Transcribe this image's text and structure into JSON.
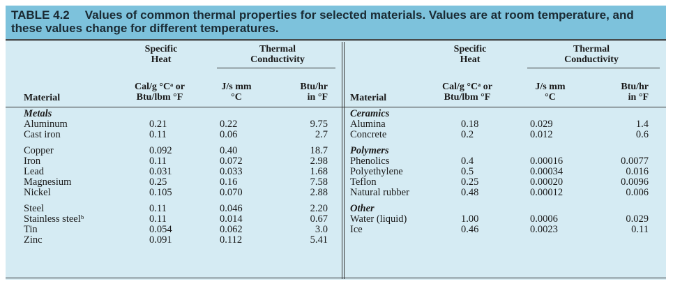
{
  "caption": {
    "number": "TABLE 4.2",
    "text": "Values of common thermal properties for selected materials. Values are at room temperature, and these values change for different temperatures."
  },
  "headers": {
    "specific_heat": [
      "Specific",
      "Heat"
    ],
    "thermal_conductivity": [
      "Thermal",
      "Conductivity"
    ],
    "material": "Material",
    "cal_unit": [
      "Cal/g °Cᵃ or",
      "Btu/lbm °F"
    ],
    "js_unit": [
      "J/s mm",
      "°C"
    ],
    "btu_unit": [
      "Btu/hr",
      "in °F"
    ]
  },
  "left_groups": [
    {
      "category": "Metals",
      "rows": [
        {
          "material": "Aluminum",
          "specific_heat": "0.21",
          "js": "0.22",
          "btu": "9.75"
        },
        {
          "material": "Cast iron",
          "specific_heat": "0.11",
          "js": "0.06",
          "btu": "2.7"
        }
      ]
    },
    {
      "category": "",
      "rows": [
        {
          "material": "Copper",
          "specific_heat": "0.092",
          "js": "0.40",
          "btu": "18.7"
        },
        {
          "material": "Iron",
          "specific_heat": "0.11",
          "js": "0.072",
          "btu": "2.98"
        },
        {
          "material": "Lead",
          "specific_heat": "0.031",
          "js": "0.033",
          "btu": "1.68"
        },
        {
          "material": "Magnesium",
          "specific_heat": "0.25",
          "js": "0.16",
          "btu": "7.58"
        },
        {
          "material": "Nickel",
          "specific_heat": "0.105",
          "js": "0.070",
          "btu": "2.88"
        }
      ]
    },
    {
      "category": "",
      "rows": [
        {
          "material": "Steel",
          "specific_heat": "0.11",
          "js": "0.046",
          "btu": "2.20"
        },
        {
          "material": "Stainless steelᵇ",
          "specific_heat": "0.11",
          "js": "0.014",
          "btu": "0.67"
        },
        {
          "material": "Tin",
          "specific_heat": "0.054",
          "js": "0.062",
          "btu": "3.0"
        },
        {
          "material": "Zinc",
          "specific_heat": "0.091",
          "js": "0.112",
          "btu": "5.41"
        }
      ]
    }
  ],
  "right_groups": [
    {
      "category": "Ceramics",
      "rows": [
        {
          "material": "Alumina",
          "specific_heat": "0.18",
          "js": "0.029",
          "btu": "1.4"
        },
        {
          "material": "Concrete",
          "specific_heat": "0.2",
          "js": "0.012",
          "btu": "0.6"
        }
      ]
    },
    {
      "category": "Polymers",
      "rows": [
        {
          "material": "Phenolics",
          "specific_heat": "0.4",
          "js": "0.00016",
          "btu": "0.0077"
        },
        {
          "material": "Polyethylene",
          "specific_heat": "0.5",
          "js": "0.00034",
          "btu": "0.016"
        },
        {
          "material": "Teflon",
          "specific_heat": "0.25",
          "js": "0.00020",
          "btu": "0.0096"
        },
        {
          "material": "Natural rubber",
          "specific_heat": "0.48",
          "js": "0.00012",
          "btu": "0.006"
        }
      ]
    },
    {
      "category": "Other",
      "rows": [
        {
          "material": "Water (liquid)",
          "specific_heat": "1.00",
          "js": "0.0006",
          "btu": "0.029"
        },
        {
          "material": "Ice",
          "specific_heat": "0.46",
          "js": "0.0023",
          "btu": "0.11"
        }
      ]
    }
  ]
}
